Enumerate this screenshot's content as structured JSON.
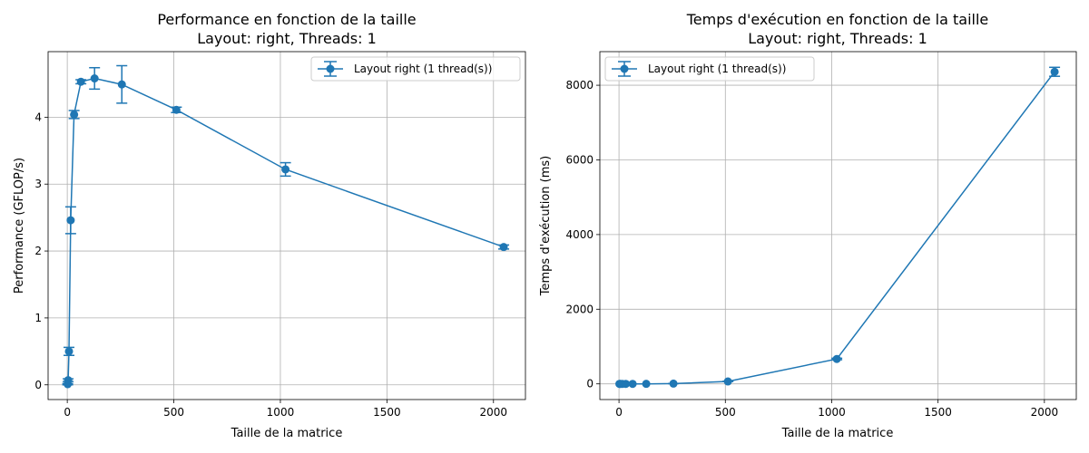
{
  "chart_data": [
    {
      "type": "line",
      "title": "Performance en fonction de la taille",
      "subtitle": "Layout: right, Threads: 1",
      "xlabel": "Taille de la matrice",
      "ylabel": "Performance (GFLOP/s)",
      "xlim": [
        -90,
        2150
      ],
      "ylim": [
        -0.22,
        4.98
      ],
      "xticks": [
        0,
        500,
        1000,
        1500,
        2000
      ],
      "yticks": [
        0,
        1,
        2,
        3,
        4
      ],
      "grid": true,
      "legend_position": "top-right",
      "series": [
        {
          "name": "Layout right (1 thread(s))",
          "color": "#1f77b4",
          "x": [
            2,
            4,
            8,
            16,
            32,
            64,
            128,
            256,
            512,
            1024,
            2048
          ],
          "y": [
            0.01,
            0.07,
            0.5,
            2.46,
            4.04,
            4.53,
            4.58,
            4.49,
            4.11,
            3.22,
            2.06
          ],
          "err": [
            0.01,
            0.02,
            0.06,
            0.2,
            0.06,
            0.03,
            0.16,
            0.28,
            0.04,
            0.1,
            0.03
          ]
        }
      ]
    },
    {
      "type": "line",
      "title": "Temps d'exécution en fonction de la taille",
      "subtitle": "Layout: right, Threads: 1",
      "xlabel": "Taille de la matrice",
      "ylabel": "Temps d'exécution (ms)",
      "xlim": [
        -90,
        2150
      ],
      "ylim": [
        -420,
        8900
      ],
      "xticks": [
        0,
        500,
        1000,
        1500,
        2000
      ],
      "yticks": [
        0,
        2000,
        4000,
        6000,
        8000
      ],
      "grid": true,
      "legend_position": "top-left",
      "series": [
        {
          "name": "Layout right (1 thread(s))",
          "color": "#1f77b4",
          "x": [
            2,
            4,
            8,
            16,
            32,
            64,
            128,
            256,
            512,
            1024,
            2048
          ],
          "y": [
            0.002,
            0.002,
            0.002,
            0.003,
            0.02,
            0.12,
            0.9,
            7.5,
            65,
            667,
            8360
          ],
          "err": [
            0,
            0,
            0,
            0,
            0,
            0,
            0,
            0.5,
            1,
            20,
            120
          ]
        }
      ]
    }
  ]
}
